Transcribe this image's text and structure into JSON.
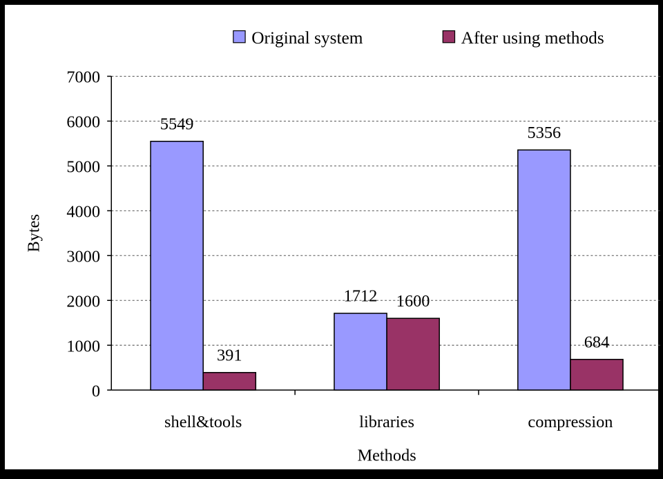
{
  "chart_data": {
    "type": "bar",
    "title": "",
    "xlabel": "Methods",
    "ylabel": "Bytes",
    "ylim": [
      0,
      7000
    ],
    "yticks": [
      0,
      1000,
      2000,
      3000,
      4000,
      5000,
      6000,
      7000
    ],
    "grid": true,
    "legend_position": "top",
    "categories": [
      "shell&tools",
      "libraries",
      "compression"
    ],
    "series": [
      {
        "name": "Original system",
        "color": "#9999FF",
        "values": [
          5549,
          1712,
          5356
        ]
      },
      {
        "name": "After using methods",
        "color": "#993366",
        "values": [
          391,
          1600,
          684
        ]
      }
    ]
  }
}
